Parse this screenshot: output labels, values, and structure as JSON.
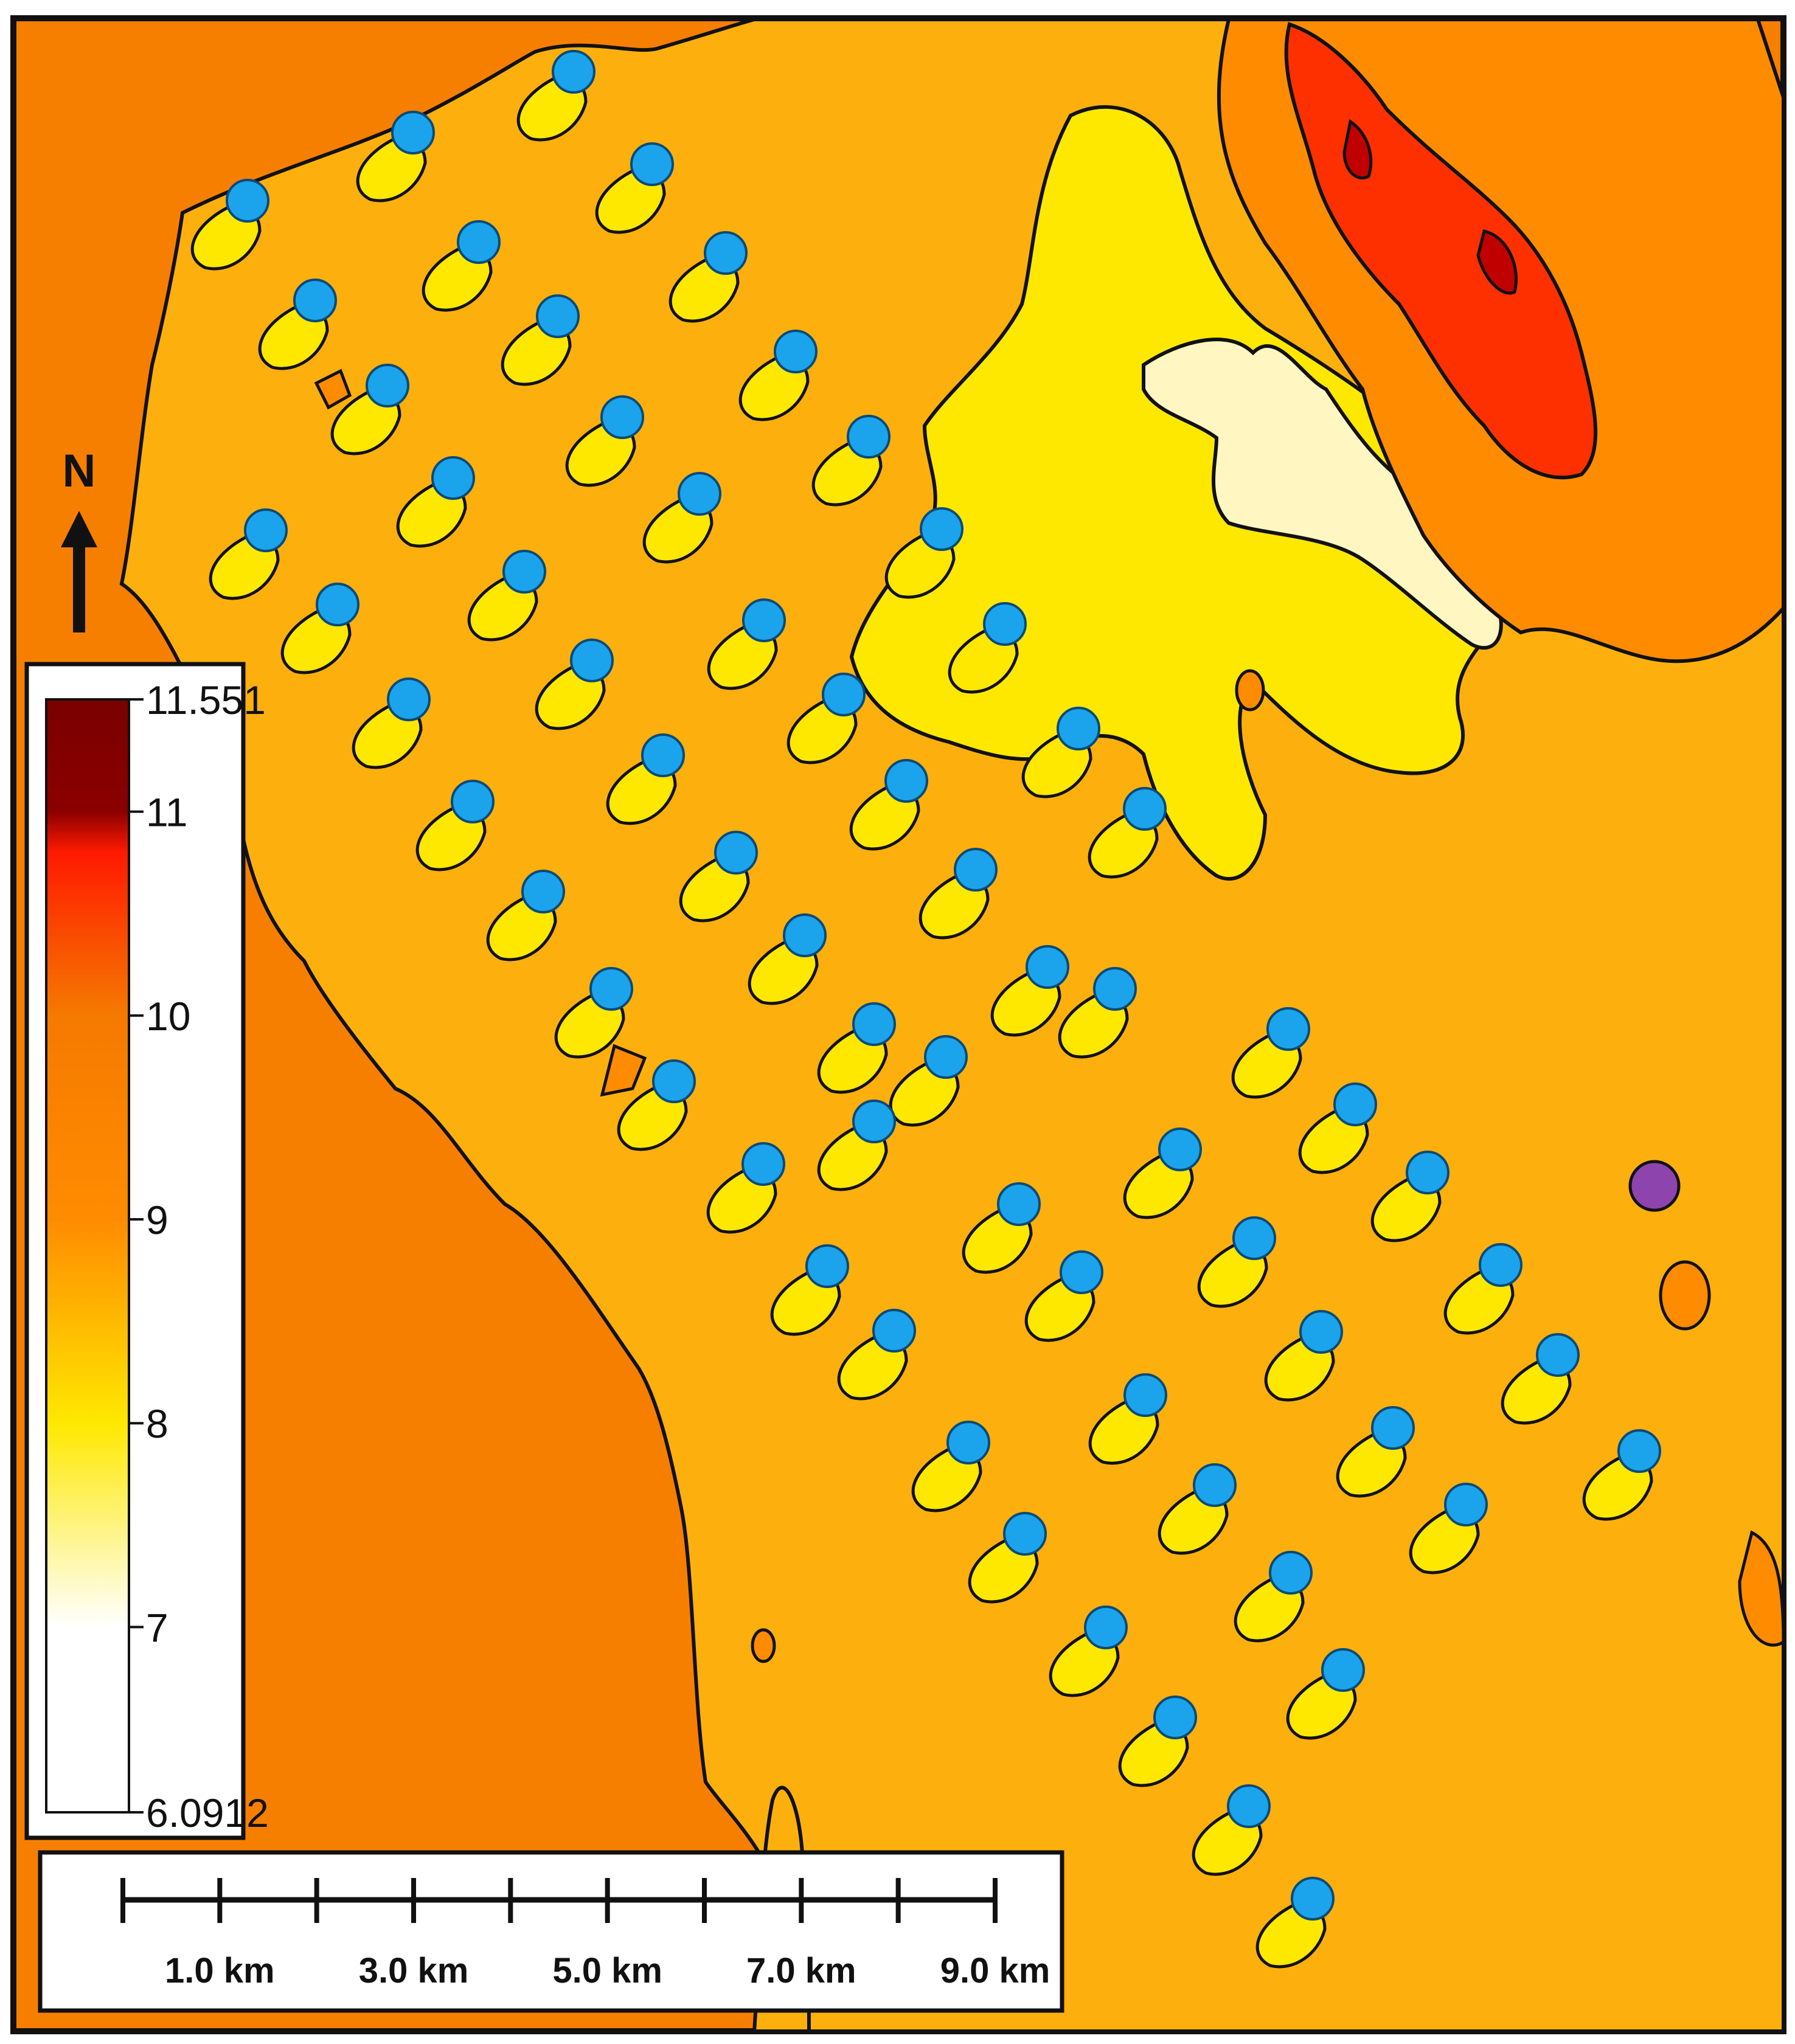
{
  "legend": {
    "ticks": [
      "11.551",
      "11",
      "10",
      "9",
      "8",
      "7",
      "6.0912"
    ],
    "color_stops": [
      {
        "value": 11.551,
        "color": "#7a0000"
      },
      {
        "value": 11.0,
        "color": "#8b0000"
      },
      {
        "value": 10.8,
        "color": "#ff1a00"
      },
      {
        "value": 10.0,
        "color": "#f57a00"
      },
      {
        "value": 9.0,
        "color": "#ff8c00"
      },
      {
        "value": 8.6,
        "color": "#ffb000"
      },
      {
        "value": 8.0,
        "color": "#ffe800"
      },
      {
        "value": 7.0,
        "color": "#ffffff"
      },
      {
        "value": 6.0912,
        "color": "#ffffff"
      }
    ]
  },
  "scale_bar": {
    "labels": [
      "1.0 km",
      "3.0 km",
      "5.0 km",
      "7.0 km",
      "9.0 km"
    ]
  },
  "north_arrow": {
    "label": "N"
  },
  "colors": {
    "background_orange": "#f77f00",
    "main_region": "#fdb00d",
    "yellow_zone": "#ffe800",
    "pale_zone": "#fff6c2",
    "red_zone": "#ff3000",
    "dark_red": "#c00000",
    "turbine_blue": "#1ba4ec",
    "purple_marker": "#8e44ad"
  },
  "icons": {
    "north": "north-arrow-icon",
    "turbine": "turbine-marker-icon",
    "special": "purple-marker-icon"
  }
}
